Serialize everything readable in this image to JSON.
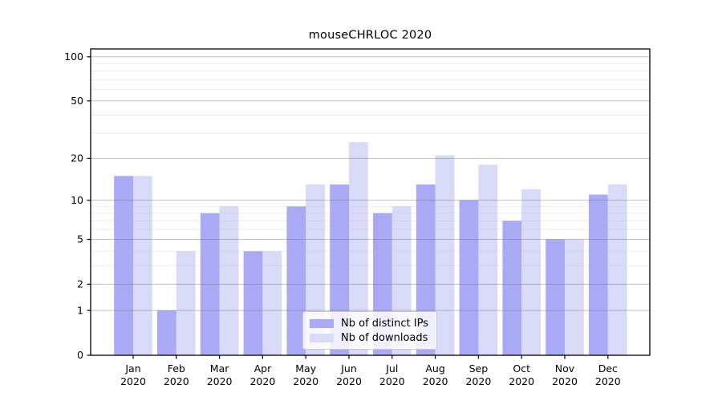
{
  "chart_data": {
    "type": "bar",
    "title": "mouseCHRLOC 2020",
    "year_label": "2020",
    "categories": [
      "Jan",
      "Feb",
      "Mar",
      "Apr",
      "May",
      "Jun",
      "Jul",
      "Aug",
      "Sep",
      "Oct",
      "Nov",
      "Dec"
    ],
    "series": [
      {
        "name": "Nb of distinct IPs",
        "color": "#a9a9f5",
        "values": [
          15,
          1,
          8,
          4,
          9,
          13,
          8,
          13,
          10,
          7,
          5,
          11
        ]
      },
      {
        "name": "Nb of downloads",
        "color": "#d9d9f8",
        "values": [
          15,
          4,
          9,
          4,
          13,
          26,
          9,
          21,
          18,
          12,
          5,
          13
        ]
      }
    ],
    "y_axis": {
      "scale": "log10(1+x)",
      "ticks": [
        0,
        1,
        2,
        5,
        10,
        20,
        50,
        100
      ],
      "minor_gridlines": [
        3,
        4,
        6,
        7,
        8,
        9,
        30,
        40,
        60,
        70,
        80,
        90
      ],
      "range_max": 113
    },
    "x_axis": {
      "label_line2": "2020"
    },
    "legend": {
      "position": "lower center"
    },
    "grid": true
  },
  "colors": {
    "background": "#ffffff",
    "axis": "#000000",
    "text": "#000000",
    "major_grid": "#c6c6c6",
    "minor_grid": "#ebebeb",
    "legend_border": "#c9c9c9"
  }
}
